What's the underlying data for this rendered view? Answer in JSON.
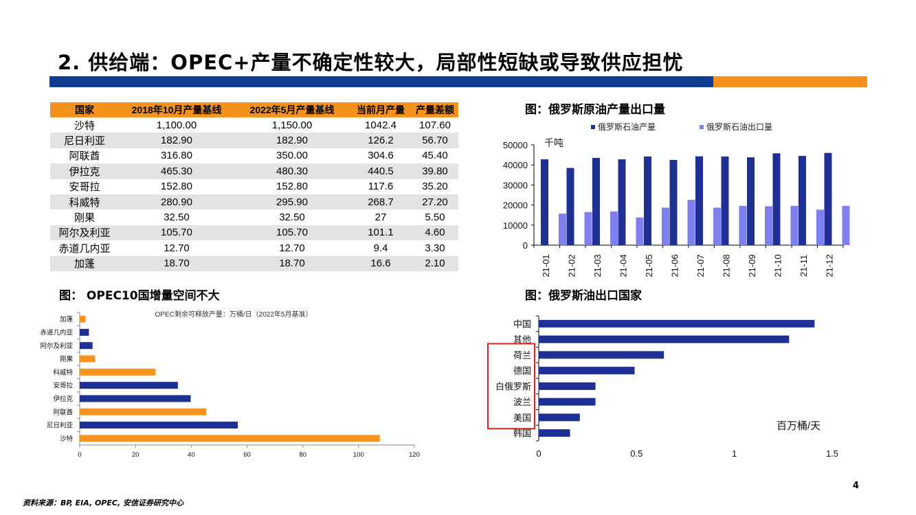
{
  "title": "2. 供给端：OPEC+产量不确定性较大，局部性短缺或导致供应担忧",
  "table": {
    "headers": [
      "国家",
      "2018年10月产量基线",
      "2022年5月产量基线",
      "当前月产量",
      "产量差额"
    ],
    "rows": [
      [
        "沙特",
        "1,100.00",
        "1,150.00",
        "1042.4",
        "107.60"
      ],
      [
        "尼日利亚",
        "182.90",
        "182.90",
        "126.2",
        "56.70"
      ],
      [
        "阿联酋",
        "316.80",
        "350.00",
        "304.6",
        "45.40"
      ],
      [
        "伊拉克",
        "465.30",
        "480.30",
        "440.5",
        "39.80"
      ],
      [
        "安哥拉",
        "152.80",
        "152.80",
        "117.6",
        "35.20"
      ],
      [
        "科威特",
        "280.90",
        "295.90",
        "268.7",
        "27.20"
      ],
      [
        "刚果",
        "32.50",
        "32.50",
        "27",
        "5.50"
      ],
      [
        "阿尔及利亚",
        "105.70",
        "105.70",
        "101.1",
        "4.60"
      ],
      [
        "赤道几内亚",
        "12.70",
        "12.70",
        "9.4",
        "3.30"
      ],
      [
        "加蓬",
        "18.70",
        "18.70",
        "16.6",
        "2.10"
      ]
    ]
  },
  "captions": {
    "russia_production": "图：俄罗斯原油产量出口量",
    "opec_space": "图： OPEC10国增量空间不大",
    "russia_export": "图：俄罗斯油出口国家"
  },
  "source": "资料来源：BP, EIA, OPEC, 安信证券研究中心",
  "page_number": "4",
  "colors": {
    "navy": "#1f2f93",
    "light_blue": "#7f7ff0",
    "orange": "#f7941d",
    "title_bar_blue": "#0f3d91"
  },
  "chart_data": [
    {
      "id": "russia_production_export",
      "type": "bar",
      "unit_label": "千吨",
      "categories": [
        "21-01",
        "21-02",
        "21-03",
        "21-04",
        "21-05",
        "21-06",
        "21-07",
        "21-08",
        "21-09",
        "21-10",
        "21-11",
        "21-12"
      ],
      "series": [
        {
          "name": "俄罗斯石油产量",
          "color": "#1f2f93",
          "values": [
            42800,
            38500,
            43500,
            42800,
            44200,
            42500,
            44300,
            44200,
            43800,
            45800,
            44500,
            46000
          ]
        },
        {
          "name": "俄罗斯石油出口量",
          "color": "#7f7ff0",
          "values": [
            15700,
            16500,
            16800,
            13800,
            18700,
            22600,
            18700,
            19600,
            19400,
            19600,
            17700,
            19600
          ]
        }
      ],
      "yticks": [
        0,
        10000,
        20000,
        30000,
        40000,
        50000
      ],
      "ylim": [
        0,
        50000
      ],
      "legend": "top"
    },
    {
      "id": "opec_spare_capacity",
      "type": "bar",
      "orientation": "horizontal",
      "title": "OPEC剩余可释放产量：万桶/日（2022年5月基准）",
      "categories": [
        "加蓬",
        "赤道几内亚",
        "阿尔及利亚",
        "刚果",
        "科威特",
        "安哥拉",
        "伊拉克",
        "阿联酋",
        "尼日利亚",
        "沙特"
      ],
      "values": [
        2.1,
        3.3,
        4.6,
        5.5,
        27.2,
        35.2,
        39.8,
        45.4,
        56.7,
        107.6
      ],
      "colors": [
        "#f7941d",
        "#1f2f93",
        "#1f2f93",
        "#f7941d",
        "#f7941d",
        "#1f2f93",
        "#1f2f93",
        "#f7941d",
        "#1f2f93",
        "#f7941d"
      ],
      "xticks": [
        0,
        20,
        40,
        60,
        80,
        100,
        120
      ],
      "xlim": [
        0,
        120
      ]
    },
    {
      "id": "russia_export_destinations",
      "type": "bar",
      "orientation": "horizontal",
      "unit_label": "百万桶/天",
      "categories": [
        "中国",
        "其他",
        "荷兰",
        "德国",
        "白俄罗斯",
        "波兰",
        "美国",
        "韩国"
      ],
      "values": [
        1.41,
        1.28,
        0.64,
        0.49,
        0.29,
        0.29,
        0.21,
        0.16
      ],
      "color": "#1f2f93",
      "highlighted": [
        "荷兰",
        "德国",
        "白俄罗斯",
        "波兰",
        "美国"
      ],
      "highlight_color": "#e0201b",
      "xticks": [
        "0",
        "0.5",
        "1",
        "1.5"
      ],
      "xlim": [
        0,
        1.5
      ]
    }
  ]
}
